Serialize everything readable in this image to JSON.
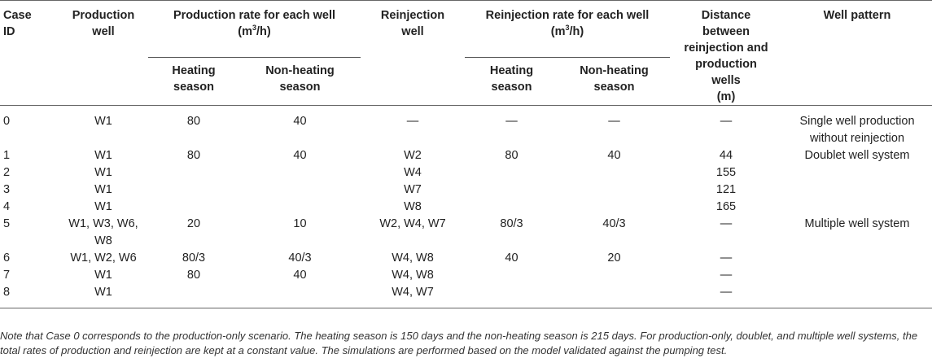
{
  "headers": {
    "case_id_line1": "Case",
    "case_id_line2": "ID",
    "production_well_line1": "Production",
    "production_well_line2": "well",
    "production_rate_line1": "Production rate for each well",
    "production_rate_unit_pre": "(m",
    "production_rate_unit_sup": "3",
    "production_rate_unit_post": "/h)",
    "reinjection_well_line1": "Reinjection",
    "reinjection_well_line2": "well",
    "reinjection_rate_line1": "Reinjection rate for each well",
    "reinjection_rate_unit_pre": "(m",
    "reinjection_rate_unit_sup": "3",
    "reinjection_rate_unit_post": "/h)",
    "distance_lines": [
      "Distance",
      "between",
      "reinjection and",
      "production",
      "wells",
      "(m)"
    ],
    "well_pattern": "Well pattern",
    "heating_line1": "Heating",
    "heating_line2": "season",
    "nonheating_line1": "Non-heating",
    "nonheating_line2": "season"
  },
  "rows": [
    {
      "id": "0",
      "prod_well": "W1",
      "prod_heat": "80",
      "prod_nonheat": "40",
      "reinj_well": "—",
      "reinj_heat": "—",
      "reinj_nonheat": "—",
      "distance": "—",
      "pattern": "Single well production without reinjection"
    },
    {
      "id": "1",
      "prod_well": "W1",
      "prod_heat": "80",
      "prod_nonheat": "40",
      "reinj_well": "W2",
      "reinj_heat": "80",
      "reinj_nonheat": "40",
      "distance": "44",
      "pattern": "Doublet well system"
    },
    {
      "id": "2",
      "prod_well": "W1",
      "prod_heat": "",
      "prod_nonheat": "",
      "reinj_well": "W4",
      "reinj_heat": "",
      "reinj_nonheat": "",
      "distance": "155",
      "pattern": ""
    },
    {
      "id": "3",
      "prod_well": "W1",
      "prod_heat": "",
      "prod_nonheat": "",
      "reinj_well": "W7",
      "reinj_heat": "",
      "reinj_nonheat": "",
      "distance": "121",
      "pattern": ""
    },
    {
      "id": "4",
      "prod_well": "W1",
      "prod_heat": "",
      "prod_nonheat": "",
      "reinj_well": "W8",
      "reinj_heat": "",
      "reinj_nonheat": "",
      "distance": "165",
      "pattern": ""
    },
    {
      "id": "5",
      "prod_well": "W1, W3, W6, W8",
      "prod_heat": "20",
      "prod_nonheat": "10",
      "reinj_well": "W2, W4, W7",
      "reinj_heat": "80/3",
      "reinj_nonheat": "40/3",
      "distance": "—",
      "pattern": "Multiple well system"
    },
    {
      "id": "6",
      "prod_well": "W1, W2, W6",
      "prod_heat": "80/3",
      "prod_nonheat": "40/3",
      "reinj_well": "W4, W8",
      "reinj_heat": "40",
      "reinj_nonheat": "20",
      "distance": "—",
      "pattern": ""
    },
    {
      "id": "7",
      "prod_well": "W1",
      "prod_heat": "80",
      "prod_nonheat": "40",
      "reinj_well": "W4, W8",
      "reinj_heat": "",
      "reinj_nonheat": "",
      "distance": "—",
      "pattern": ""
    },
    {
      "id": "8",
      "prod_well": "W1",
      "prod_heat": "",
      "prod_nonheat": "",
      "reinj_well": "W4, W7",
      "reinj_heat": "",
      "reinj_nonheat": "",
      "distance": "—",
      "pattern": ""
    }
  ],
  "note": "Note that Case 0 corresponds to the production-only scenario. The heating season is 150 days and the non-heating season is 215 days. For production-only, doublet, and multiple well systems, the total rates of production and reinjection are kept at a constant value. The simulations are performed based on the model validated against the pumping test."
}
